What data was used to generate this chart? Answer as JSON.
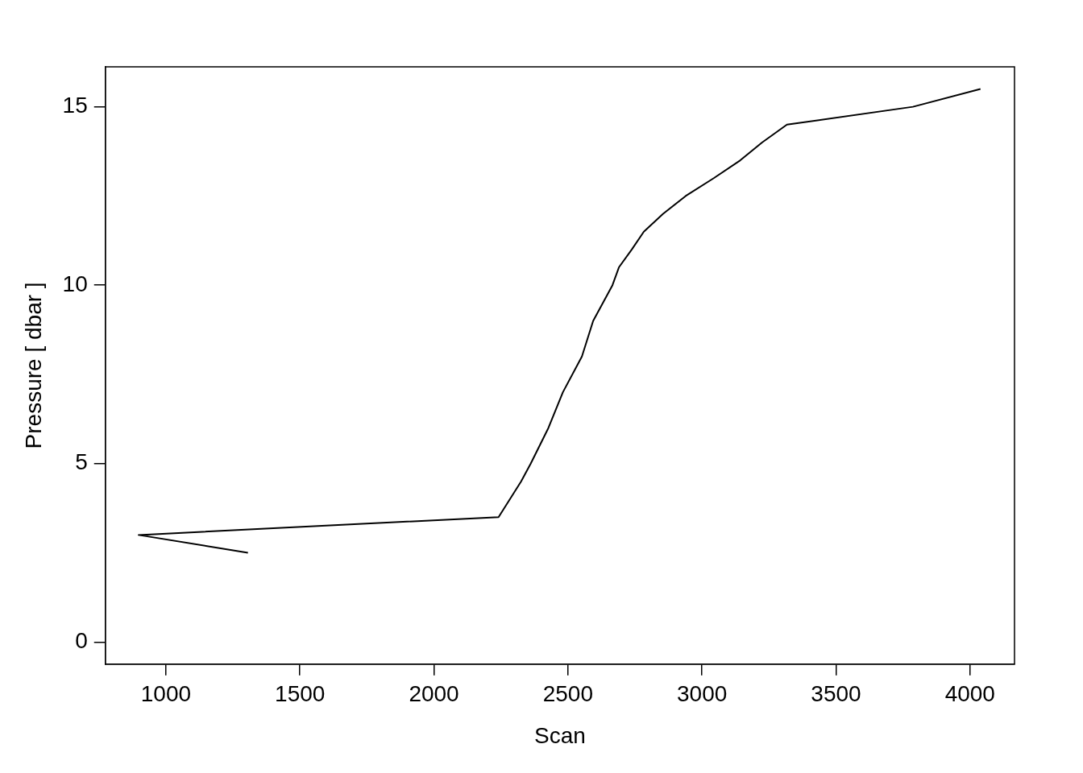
{
  "chart_data": {
    "type": "line",
    "xlabel": "Scan",
    "ylabel": "Pressure [ dbar ]",
    "x": [
      1306,
      898,
      2241,
      2325,
      2361,
      2427,
      2481,
      2552,
      2594,
      2666,
      2690,
      2738,
      2783,
      2855,
      2939,
      3044,
      3143,
      3224,
      3317,
      3787,
      4039
    ],
    "series": [
      {
        "color": "#000000",
        "values": [
          2.5,
          3.0,
          3.5,
          4.5,
          5.0,
          6.0,
          7.0,
          8.0,
          9.0,
          10.0,
          10.5,
          11.0,
          11.5,
          12.0,
          12.5,
          13.0,
          13.5,
          14.0,
          14.5,
          15.0,
          15.5
        ]
      }
    ],
    "xlim": [
      774,
      4166
    ],
    "xticks": [
      1000,
      1500,
      2000,
      2500,
      3000,
      3500,
      4000
    ],
    "ylim": [
      -0.62,
      16.12
    ],
    "yticks": [
      0,
      5,
      10,
      15
    ],
    "grid": false,
    "legend": false,
    "marker": "none",
    "line_style": "solid"
  }
}
